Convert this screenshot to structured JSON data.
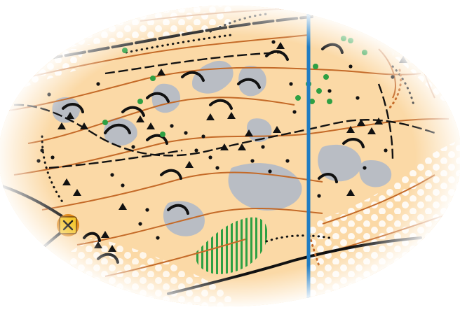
{
  "map": {
    "type": "orienteering-map",
    "features": [
      "open-land",
      "rough-open-land",
      "contour-lines",
      "small-knolls",
      "boulders",
      "boulder-fields",
      "bare-rock",
      "cliffs",
      "tracks",
      "paths",
      "vegetation-green",
      "undergrowth",
      "magnetic-north-line",
      "control-point"
    ],
    "colors": {
      "paper": "#ffffff",
      "open_land": "#fbd9a6",
      "rough_open": "#fde8c8",
      "contour": "#c46a28",
      "rock_gray": "#b9bdc4",
      "feature_black": "#111111",
      "vegetation_green": "#2ea043",
      "north_line_blue": "#1f7cc2",
      "control_yellow": "#f4c52b",
      "control_ring": "#e08a1e"
    },
    "control": {
      "icon": "crossed-x-icon"
    }
  }
}
